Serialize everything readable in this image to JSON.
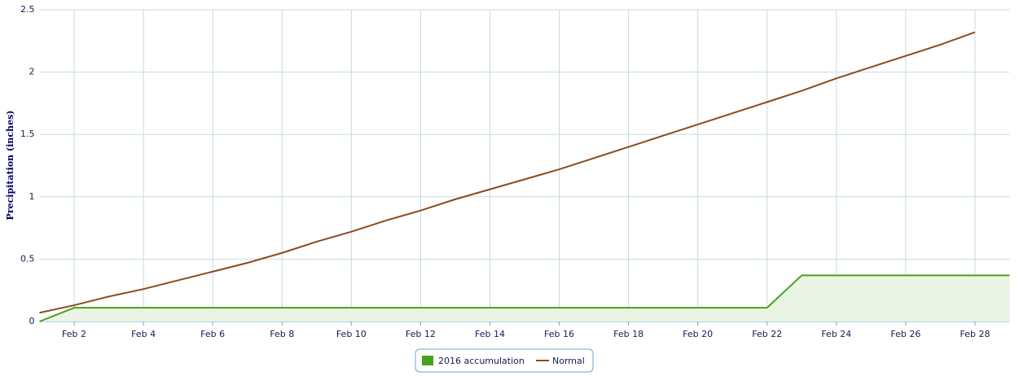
{
  "chart_data": {
    "type": "line",
    "y_label": "Precipitation (inches)",
    "x": [
      1,
      2,
      3,
      4,
      5,
      6,
      7,
      8,
      9,
      10,
      11,
      12,
      13,
      14,
      15,
      16,
      17,
      18,
      19,
      20,
      21,
      22,
      23,
      24,
      25,
      26,
      27,
      28,
      29
    ],
    "series": [
      {
        "name": "2016 accumulation",
        "color": "#46a11e",
        "fill": "#eaf4e4",
        "values": [
          0,
          0.11,
          0.11,
          0.11,
          0.11,
          0.11,
          0.11,
          0.11,
          0.11,
          0.11,
          0.11,
          0.11,
          0.11,
          0.11,
          0.11,
          0.11,
          0.11,
          0.11,
          0.11,
          0.11,
          0.11,
          0.11,
          0.37,
          0.37,
          0.37,
          0.37,
          0.37,
          0.37,
          0.37
        ]
      },
      {
        "name": "Normal",
        "color": "#8b4a1f",
        "values": [
          0.07,
          0.13,
          0.2,
          0.26,
          0.33,
          0.4,
          0.47,
          0.55,
          0.64,
          0.72,
          0.81,
          0.89,
          0.98,
          1.06,
          1.14,
          1.22,
          1.31,
          1.4,
          1.49,
          1.58,
          1.67,
          1.76,
          1.85,
          1.95,
          2.04,
          2.13,
          2.22,
          2.32,
          null
        ]
      }
    ],
    "xlim": [
      1,
      29
    ],
    "xticks": [
      {
        "value": 2,
        "label": "Feb 2"
      },
      {
        "value": 4,
        "label": "Feb 4"
      },
      {
        "value": 6,
        "label": "Feb 6"
      },
      {
        "value": 8,
        "label": "Feb 8"
      },
      {
        "value": 10,
        "label": "Feb 10"
      },
      {
        "value": 12,
        "label": "Feb 12"
      },
      {
        "value": 14,
        "label": "Feb 14"
      },
      {
        "value": 16,
        "label": "Feb 16"
      },
      {
        "value": 18,
        "label": "Feb 18"
      },
      {
        "value": 20,
        "label": "Feb 20"
      },
      {
        "value": 22,
        "label": "Feb 22"
      },
      {
        "value": 24,
        "label": "Feb 24"
      },
      {
        "value": 26,
        "label": "Feb 26"
      },
      {
        "value": 28,
        "label": "Feb 28"
      }
    ],
    "ylim": [
      0,
      2.5
    ],
    "yticks": [
      0,
      0.5,
      1,
      1.5,
      2,
      2.5
    ],
    "grid": true,
    "legend": "bottom"
  }
}
